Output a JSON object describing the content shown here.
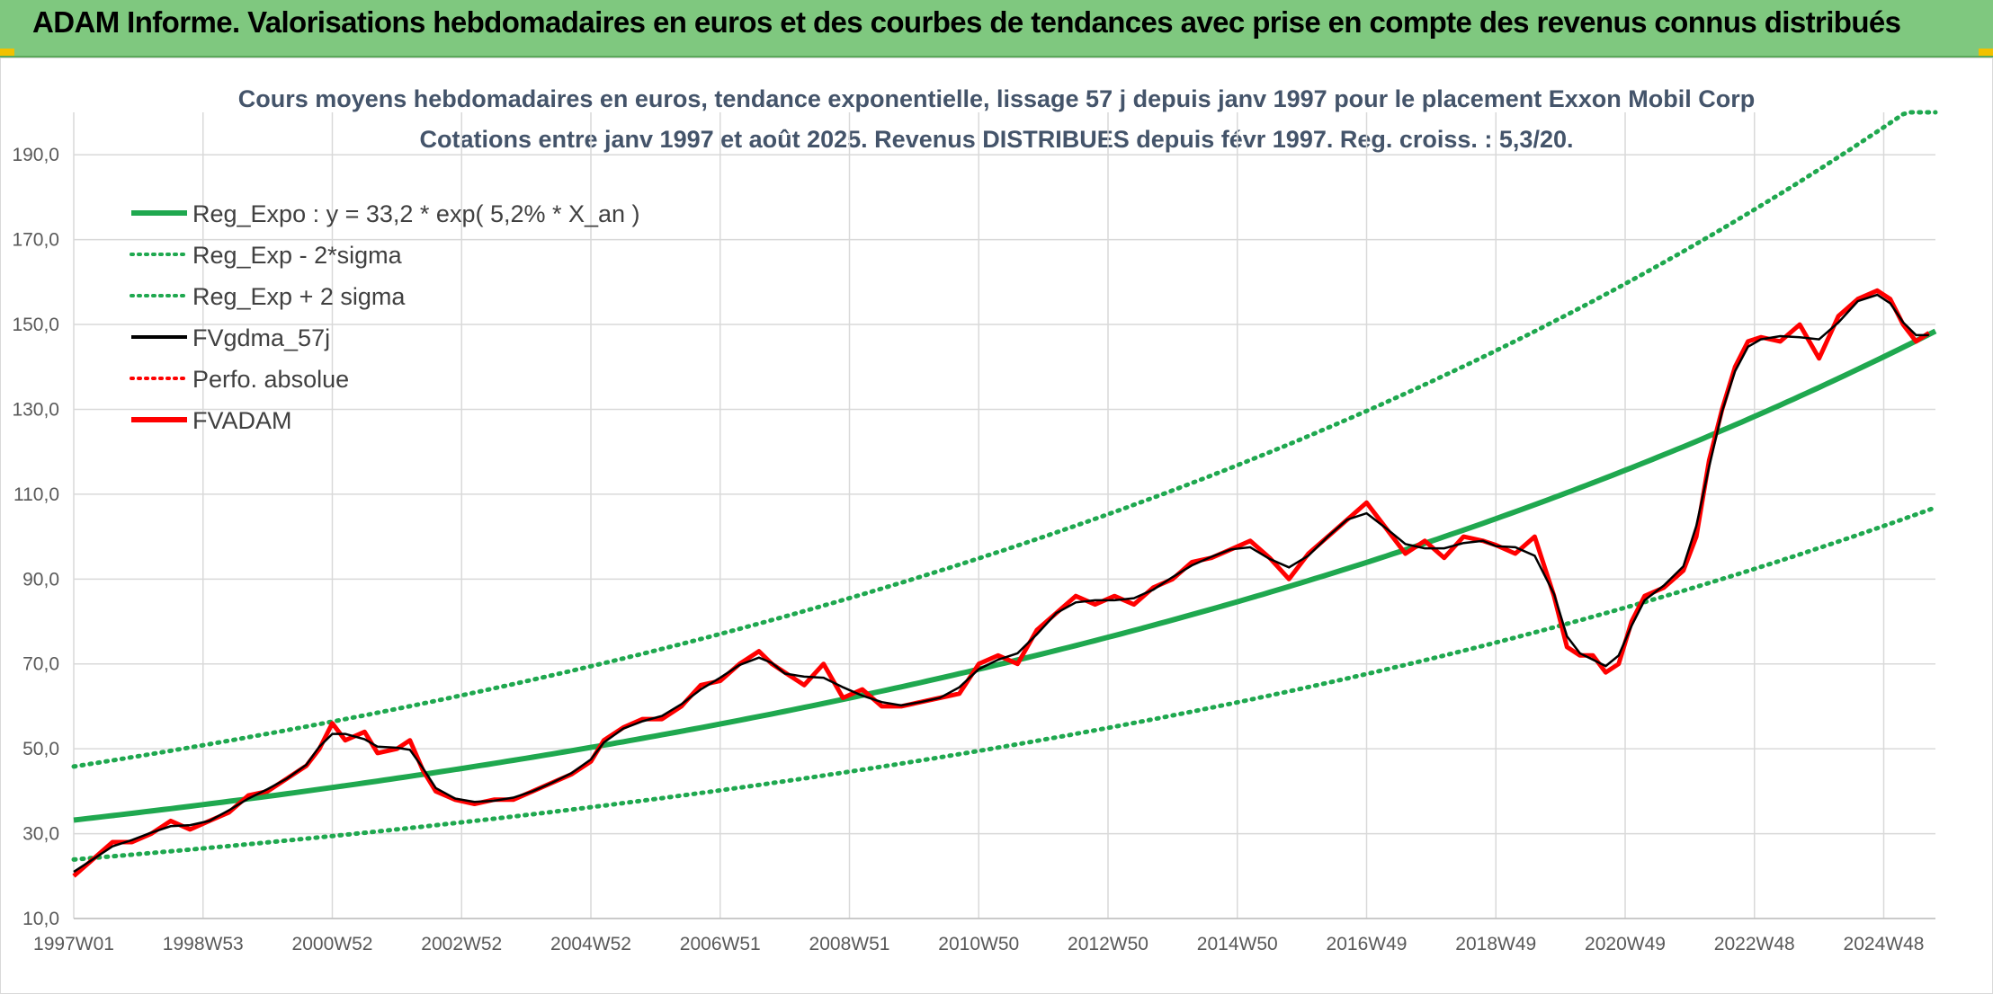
{
  "banner": {
    "title": "ADAM Informe. Valorisations hebdomadaires en euros et des courbes de tendances avec prise en compte des revenus connus distribués",
    "color": "#7fc87f"
  },
  "chart_data": {
    "type": "line",
    "title": "Cours moyens hebdomadaires en euros, tendance exponentielle, lissage 57 j depuis janv 1997 pour le placement Exxon Mobil Corp",
    "subtitle": "Cotations entre janv 1997 et août 2025. Revenus DISTRIBUES depuis févr 1997. Reg. croiss. : 5,3/20.",
    "xlabel": "",
    "ylabel": "",
    "ylim": [
      10,
      200
    ],
    "y_ticks": [
      "10,0",
      "30,0",
      "50,0",
      "70,0",
      "90,0",
      "110,0",
      "130,0",
      "150,0",
      "170,0",
      "190,0"
    ],
    "y_tick_values": [
      10,
      30,
      50,
      70,
      90,
      110,
      130,
      150,
      170,
      190
    ],
    "x_ticks": [
      "1997W01",
      "1998W53",
      "2000W52",
      "2002W52",
      "2004W52",
      "2006W51",
      "2008W51",
      "2010W50",
      "2012W50",
      "2014W50",
      "2016W49",
      "2018W49",
      "2020W49",
      "2022W48",
      "2024W48"
    ],
    "x_tick_years": [
      1997.0,
      1999.0,
      2001.0,
      2003.0,
      2005.0,
      2007.0,
      2009.0,
      2011.0,
      2013.0,
      2015.0,
      2017.0,
      2019.0,
      2021.0,
      2023.0,
      2025.0
    ],
    "xlim": [
      1997.0,
      2025.8
    ],
    "grid": true,
    "legend_position": "top-left",
    "legend": [
      {
        "label": "Reg_Expo : y = 33,2 * exp( 5,2% *  X_an )",
        "color": "#1fa84f",
        "style": "solid-thick"
      },
      {
        "label": "Reg_Exp - 2*sigma",
        "color": "#1fa84f",
        "style": "dotted"
      },
      {
        "label": "Reg_Exp + 2 sigma",
        "color": "#1fa84f",
        "style": "dotted"
      },
      {
        "label": "FVgdma_57j",
        "color": "#000000",
        "style": "solid"
      },
      {
        "label": "Perfo. absolue",
        "color": "#ff0000",
        "style": "dotted"
      },
      {
        "label": "FVADAM",
        "color": "#ff0000",
        "style": "solid-thick"
      }
    ],
    "regression": {
      "a": 33.2,
      "rate": 0.052,
      "minus_2sigma_factor": 0.72,
      "plus_2sigma_factor": 1.38
    },
    "series": [
      {
        "name": "FVADAM",
        "color": "#ff0000",
        "points": [
          [
            1997.0,
            20
          ],
          [
            1997.3,
            24
          ],
          [
            1997.6,
            28
          ],
          [
            1997.9,
            28
          ],
          [
            1998.2,
            30
          ],
          [
            1998.5,
            33
          ],
          [
            1998.8,
            31
          ],
          [
            1999.1,
            33
          ],
          [
            1999.4,
            35
          ],
          [
            1999.7,
            39
          ],
          [
            2000.0,
            40
          ],
          [
            2000.3,
            43
          ],
          [
            2000.6,
            46
          ],
          [
            2000.8,
            50
          ],
          [
            2001.0,
            56
          ],
          [
            2001.2,
            52
          ],
          [
            2001.5,
            54
          ],
          [
            2001.7,
            49
          ],
          [
            2002.0,
            50
          ],
          [
            2002.2,
            52
          ],
          [
            2002.4,
            45
          ],
          [
            2002.6,
            40
          ],
          [
            2002.9,
            38
          ],
          [
            2003.2,
            37
          ],
          [
            2003.5,
            38
          ],
          [
            2003.8,
            38
          ],
          [
            2004.1,
            40
          ],
          [
            2004.4,
            42
          ],
          [
            2004.7,
            44
          ],
          [
            2005.0,
            47
          ],
          [
            2005.2,
            52
          ],
          [
            2005.5,
            55
          ],
          [
            2005.8,
            57
          ],
          [
            2006.1,
            57
          ],
          [
            2006.4,
            60
          ],
          [
            2006.7,
            65
          ],
          [
            2007.0,
            66
          ],
          [
            2007.3,
            70
          ],
          [
            2007.6,
            73
          ],
          [
            2007.8,
            70
          ],
          [
            2008.0,
            68
          ],
          [
            2008.3,
            65
          ],
          [
            2008.6,
            70
          ],
          [
            2008.9,
            62
          ],
          [
            2009.2,
            64
          ],
          [
            2009.5,
            60
          ],
          [
            2009.8,
            60
          ],
          [
            2010.1,
            61
          ],
          [
            2010.4,
            62
          ],
          [
            2010.7,
            63
          ],
          [
            2011.0,
            70
          ],
          [
            2011.3,
            72
          ],
          [
            2011.6,
            70
          ],
          [
            2011.9,
            78
          ],
          [
            2012.2,
            82
          ],
          [
            2012.5,
            86
          ],
          [
            2012.8,
            84
          ],
          [
            2013.1,
            86
          ],
          [
            2013.4,
            84
          ],
          [
            2013.7,
            88
          ],
          [
            2014.0,
            90
          ],
          [
            2014.3,
            94
          ],
          [
            2014.6,
            95
          ],
          [
            2014.9,
            97
          ],
          [
            2015.2,
            99
          ],
          [
            2015.5,
            95
          ],
          [
            2015.8,
            90
          ],
          [
            2016.1,
            96
          ],
          [
            2016.4,
            100
          ],
          [
            2016.7,
            104
          ],
          [
            2017.0,
            108
          ],
          [
            2017.3,
            102
          ],
          [
            2017.6,
            96
          ],
          [
            2017.9,
            99
          ],
          [
            2018.2,
            95
          ],
          [
            2018.5,
            100
          ],
          [
            2018.8,
            99
          ],
          [
            2019.0,
            98
          ],
          [
            2019.3,
            96
          ],
          [
            2019.6,
            100
          ],
          [
            2019.9,
            86
          ],
          [
            2020.1,
            74
          ],
          [
            2020.3,
            72
          ],
          [
            2020.5,
            72
          ],
          [
            2020.7,
            68
          ],
          [
            2020.9,
            70
          ],
          [
            2021.1,
            80
          ],
          [
            2021.3,
            86
          ],
          [
            2021.6,
            88
          ],
          [
            2021.9,
            92
          ],
          [
            2022.1,
            100
          ],
          [
            2022.3,
            118
          ],
          [
            2022.5,
            130
          ],
          [
            2022.7,
            140
          ],
          [
            2022.9,
            146
          ],
          [
            2023.1,
            147
          ],
          [
            2023.4,
            146
          ],
          [
            2023.7,
            150
          ],
          [
            2024.0,
            142
          ],
          [
            2024.3,
            152
          ],
          [
            2024.6,
            156
          ],
          [
            2024.9,
            158
          ],
          [
            2025.1,
            156
          ],
          [
            2025.3,
            150
          ],
          [
            2025.5,
            146
          ],
          [
            2025.7,
            148
          ]
        ]
      }
    ]
  }
}
